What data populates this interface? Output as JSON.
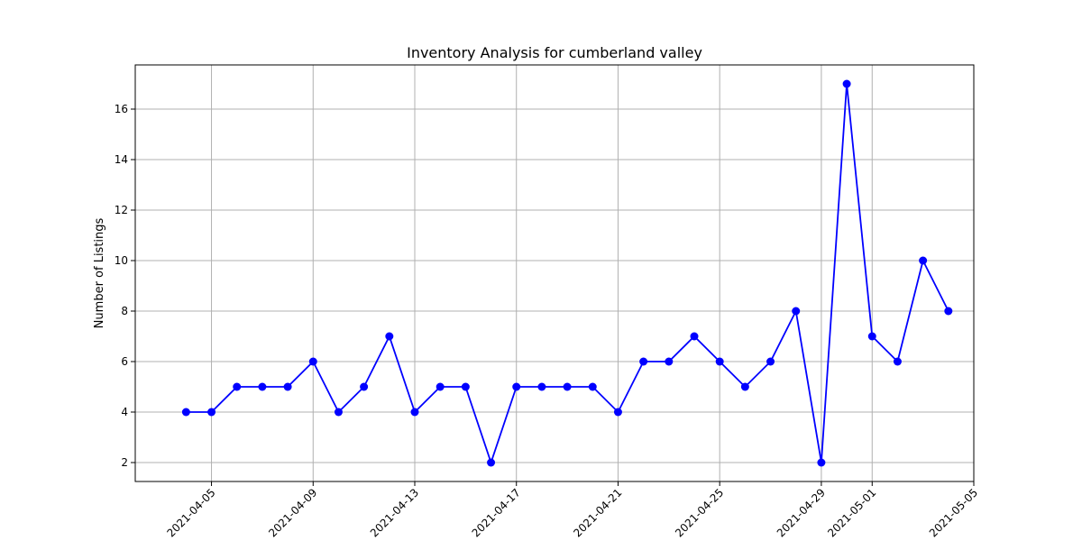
{
  "chart_data": {
    "type": "line",
    "title": "Inventory Analysis for cumberland valley",
    "xlabel": "",
    "ylabel": "Number of Listings",
    "x": [
      "2021-04-04",
      "2021-04-05",
      "2021-04-06",
      "2021-04-07",
      "2021-04-08",
      "2021-04-09",
      "2021-04-10",
      "2021-04-11",
      "2021-04-12",
      "2021-04-13",
      "2021-04-14",
      "2021-04-15",
      "2021-04-16",
      "2021-04-17",
      "2021-04-18",
      "2021-04-19",
      "2021-04-20",
      "2021-04-21",
      "2021-04-22",
      "2021-04-23",
      "2021-04-24",
      "2021-04-25",
      "2021-04-26",
      "2021-04-27",
      "2021-04-28",
      "2021-04-29",
      "2021-04-30",
      "2021-05-01",
      "2021-05-02",
      "2021-05-03",
      "2021-05-04"
    ],
    "series": [
      {
        "values": [
          4,
          4,
          5,
          5,
          5,
          6,
          4,
          5,
          7,
          4,
          5,
          5,
          2,
          5,
          5,
          5,
          5,
          4,
          6,
          6,
          7,
          6,
          5,
          6,
          8,
          2,
          17,
          7,
          6,
          10,
          8
        ],
        "color": "#0000ff"
      }
    ],
    "x_ticks": [
      "2021-04-05",
      "2021-04-09",
      "2021-04-13",
      "2021-04-17",
      "2021-04-21",
      "2021-04-25",
      "2021-04-29",
      "2021-05-01",
      "2021-05-05"
    ],
    "xlim": [
      "2021-04-02",
      "2021-05-05"
    ],
    "y_ticks": [
      2,
      4,
      6,
      8,
      10,
      12,
      14,
      16
    ],
    "ylim": [
      1.25,
      17.75
    ],
    "grid": true,
    "marker": "circle"
  }
}
